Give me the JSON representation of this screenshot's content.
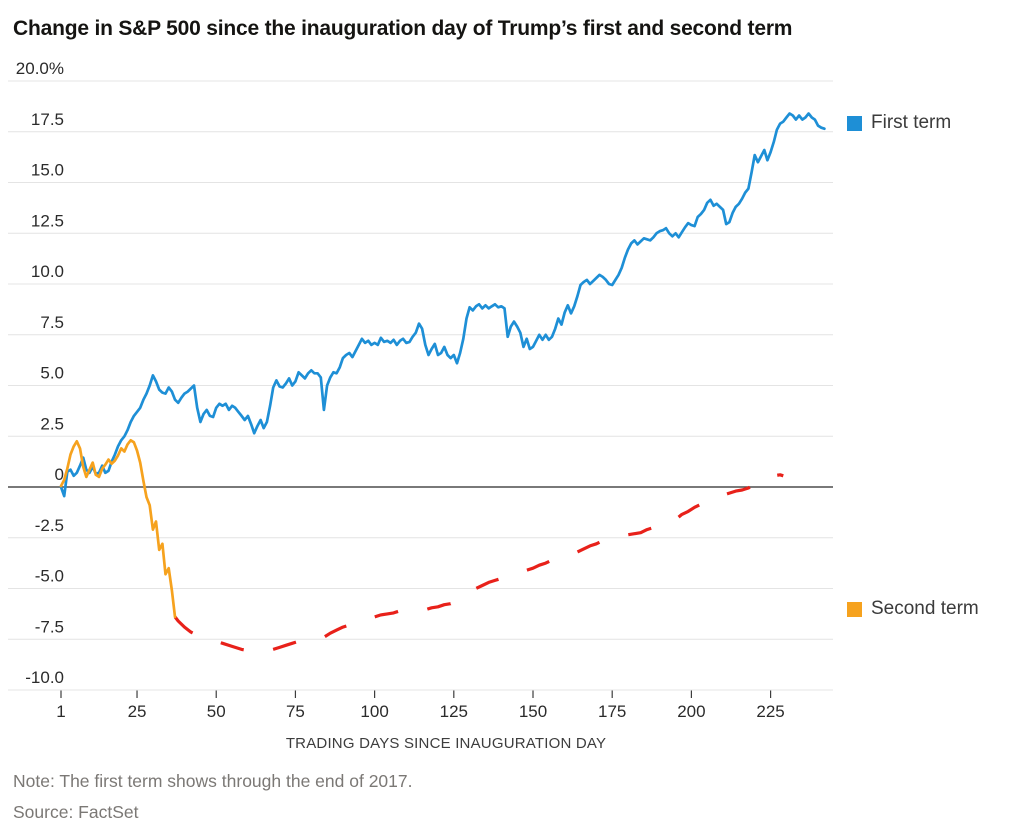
{
  "title": "Change in S&P 500 since the inauguration day of Trump’s first and second term",
  "note": "Note: The first term shows through the end of 2017.",
  "source": "Source: FactSet",
  "legend": {
    "first": "First term",
    "second": "Second term"
  },
  "colors": {
    "first_term": "#1e8fd6",
    "second_term": "#f6a21e",
    "second_term_dashed": "#e8211a",
    "zero_line": "#4d4d4d",
    "gridline": "#e4e4e4",
    "tick_text": "#2b2b2b",
    "axis_title_text": "#3d3d3d"
  },
  "chart_data": {
    "type": "line",
    "title": "Change in S&P 500 since the inauguration day of Trump’s first and second term",
    "xlabel": "TRADING DAYS SINCE INAUGURATION DAY",
    "ylabel": "",
    "grid": true,
    "legend_position": "right",
    "xlim": [
      1,
      244
    ],
    "ylim": [
      -10,
      20
    ],
    "x_ticks": [
      1,
      25,
      50,
      75,
      100,
      125,
      150,
      175,
      200,
      225
    ],
    "y_ticks": [
      20,
      17.5,
      15,
      12.5,
      10,
      7.5,
      5,
      2.5,
      0,
      -2.5,
      -5,
      -7.5,
      -10
    ],
    "y_tick_labels": [
      "20.0%",
      "17.5",
      "15.0",
      "12.5",
      "10.0",
      "7.5",
      "5.0",
      "2.5",
      "0",
      "-2.5",
      "-5.0",
      "-7.5",
      "-10.0"
    ],
    "series": [
      {
        "name": "First term",
        "style": "solid",
        "color_key": "first_term",
        "start_day": 1,
        "values": [
          0,
          -0.45,
          0.75,
          0.85,
          0.55,
          0.7,
          1.05,
          1.45,
          0.85,
          0.7,
          1.0,
          0.65,
          0.7,
          1.05,
          0.7,
          0.8,
          1.25,
          1.6,
          2.0,
          2.3,
          2.5,
          2.8,
          3.2,
          3.5,
          3.7,
          3.9,
          4.3,
          4.6,
          5.0,
          5.5,
          5.2,
          4.8,
          4.65,
          4.6,
          4.9,
          4.7,
          4.3,
          4.15,
          4.4,
          4.6,
          4.7,
          4.85,
          5.0,
          3.9,
          3.2,
          3.6,
          3.8,
          3.5,
          3.45,
          3.9,
          4.1,
          4.0,
          4.1,
          3.8,
          4.0,
          3.9,
          3.7,
          3.5,
          3.3,
          3.5,
          3.1,
          2.65,
          3.0,
          3.3,
          2.9,
          3.2,
          4.0,
          4.9,
          5.25,
          4.95,
          4.9,
          5.1,
          5.35,
          5.0,
          5.2,
          5.65,
          5.5,
          5.35,
          5.6,
          5.75,
          5.6,
          5.6,
          5.4,
          3.8,
          5.0,
          5.4,
          5.65,
          5.6,
          5.9,
          6.35,
          6.5,
          6.6,
          6.4,
          6.7,
          7.0,
          7.3,
          7.1,
          7.2,
          7.0,
          7.1,
          7.0,
          7.35,
          7.15,
          7.2,
          7.1,
          7.25,
          7.0,
          7.2,
          7.3,
          7.1,
          7.15,
          7.4,
          7.6,
          8.05,
          7.8,
          7.0,
          6.5,
          6.8,
          7.05,
          6.5,
          6.6,
          6.9,
          6.5,
          6.35,
          6.5,
          6.1,
          6.6,
          7.3,
          8.3,
          8.85,
          8.7,
          8.9,
          9.0,
          8.8,
          8.95,
          8.8,
          8.9,
          9.0,
          8.85,
          8.9,
          8.8,
          7.4,
          7.9,
          8.15,
          7.9,
          7.6,
          6.9,
          7.3,
          6.8,
          6.9,
          7.2,
          7.5,
          7.25,
          7.5,
          7.25,
          7.4,
          7.8,
          8.3,
          8.0,
          8.6,
          8.95,
          8.55,
          8.9,
          9.4,
          9.95,
          10.1,
          10.2,
          10.0,
          10.15,
          10.3,
          10.45,
          10.35,
          10.2,
          10.0,
          9.95,
          10.2,
          10.45,
          10.8,
          11.3,
          11.7,
          12.0,
          12.15,
          11.95,
          12.1,
          12.25,
          12.2,
          12.15,
          12.3,
          12.5,
          12.6,
          12.65,
          12.75,
          12.5,
          12.35,
          12.5,
          12.3,
          12.55,
          12.8,
          13.0,
          12.9,
          12.85,
          13.3,
          13.45,
          13.65,
          14.0,
          14.15,
          13.85,
          13.95,
          13.8,
          13.65,
          12.95,
          13.05,
          13.5,
          13.8,
          13.95,
          14.2,
          14.5,
          14.7,
          15.5,
          16.35,
          16.0,
          16.3,
          16.6,
          16.1,
          16.5,
          17.0,
          17.6,
          17.9,
          18.0,
          18.2,
          18.4,
          18.3,
          18.1,
          18.3,
          18.1,
          18.2,
          18.4,
          18.2,
          18.1,
          17.8,
          17.7,
          17.65
        ]
      },
      {
        "name": "Second term",
        "style": "solid",
        "color_key": "second_term",
        "start_day": 1,
        "values": [
          0.05,
          0.35,
          0.9,
          1.6,
          2.0,
          2.25,
          1.9,
          1.0,
          0.5,
          0.85,
          1.2,
          0.6,
          0.5,
          0.9,
          1.1,
          1.35,
          1.15,
          1.3,
          1.55,
          1.9,
          1.75,
          2.1,
          2.3,
          2.2,
          1.8,
          1.2,
          0.3,
          -0.5,
          -0.9,
          -2.1,
          -1.7,
          -3.1,
          -2.8,
          -4.3,
          -4.0,
          -5.1,
          -6.4
        ]
      },
      {
        "name": "Second term (dashed continuation)",
        "style": "dashed",
        "color_key": "second_term_dashed",
        "points": [
          [
            37,
            -6.4
          ],
          [
            38,
            -6.6
          ],
          [
            40,
            -6.9
          ],
          [
            42,
            -7.15
          ],
          [
            44,
            -7.3
          ],
          [
            46,
            -7.45
          ],
          [
            48,
            -7.55
          ],
          [
            50,
            -7.6
          ],
          [
            52,
            -7.7
          ],
          [
            55,
            -7.85
          ],
          [
            58,
            -8.0
          ],
          [
            60,
            -8.05
          ],
          [
            62,
            -8.1
          ],
          [
            64,
            -8.15
          ],
          [
            66,
            -8.1
          ],
          [
            68,
            -8.0
          ],
          [
            70,
            -7.9
          ],
          [
            72,
            -7.8
          ],
          [
            74,
            -7.7
          ],
          [
            76,
            -7.6
          ],
          [
            78,
            -7.6
          ],
          [
            80,
            -7.6
          ],
          [
            82,
            -7.55
          ],
          [
            84,
            -7.4
          ],
          [
            86,
            -7.2
          ],
          [
            88,
            -7.05
          ],
          [
            90,
            -6.9
          ],
          [
            92,
            -6.8
          ],
          [
            94,
            -6.7
          ],
          [
            96,
            -6.6
          ],
          [
            98,
            -6.45
          ],
          [
            100,
            -6.4
          ],
          [
            102,
            -6.3
          ],
          [
            104,
            -6.25
          ],
          [
            106,
            -6.2
          ],
          [
            108,
            -6.1
          ],
          [
            110,
            -6.0
          ],
          [
            112,
            -5.95
          ],
          [
            114,
            -6.0
          ],
          [
            116,
            -6.05
          ],
          [
            118,
            -5.95
          ],
          [
            120,
            -5.9
          ],
          [
            122,
            -5.8
          ],
          [
            124,
            -5.75
          ],
          [
            126,
            -5.6
          ],
          [
            128,
            -5.4
          ],
          [
            130,
            -5.2
          ],
          [
            132,
            -5.0
          ],
          [
            134,
            -4.85
          ],
          [
            136,
            -4.7
          ],
          [
            138,
            -4.6
          ],
          [
            140,
            -4.5
          ],
          [
            142,
            -4.4
          ],
          [
            144,
            -4.35
          ],
          [
            146,
            -4.25
          ],
          [
            148,
            -4.1
          ],
          [
            150,
            -4.0
          ],
          [
            152,
            -3.85
          ],
          [
            154,
            -3.75
          ],
          [
            156,
            -3.6
          ],
          [
            158,
            -3.5
          ],
          [
            160,
            -3.45
          ],
          [
            162,
            -3.35
          ],
          [
            164,
            -3.2
          ],
          [
            166,
            -3.05
          ],
          [
            168,
            -2.9
          ],
          [
            170,
            -2.8
          ],
          [
            172,
            -2.65
          ],
          [
            174,
            -2.55
          ],
          [
            176,
            -2.45
          ],
          [
            178,
            -2.4
          ],
          [
            180,
            -2.35
          ],
          [
            182,
            -2.3
          ],
          [
            184,
            -2.25
          ],
          [
            186,
            -2.1
          ],
          [
            188,
            -2.0
          ],
          [
            190,
            -1.85
          ],
          [
            192,
            -1.75
          ],
          [
            194,
            -1.7
          ],
          [
            195,
            -1.6
          ],
          [
            197,
            -1.35
          ],
          [
            199,
            -1.2
          ],
          [
            201,
            -1.0
          ],
          [
            203,
            -0.85
          ],
          [
            205,
            -0.7
          ],
          [
            206,
            -0.65
          ],
          [
            208,
            -0.5
          ],
          [
            210,
            -0.4
          ],
          [
            212,
            -0.3
          ],
          [
            214,
            -0.2
          ],
          [
            216,
            -0.15
          ],
          [
            218,
            -0.05
          ],
          [
            220,
            0.15
          ],
          [
            222,
            0.3
          ],
          [
            224,
            0.45
          ],
          [
            226,
            0.55
          ],
          [
            228,
            0.6
          ],
          [
            229,
            0.55
          ]
        ]
      }
    ]
  }
}
